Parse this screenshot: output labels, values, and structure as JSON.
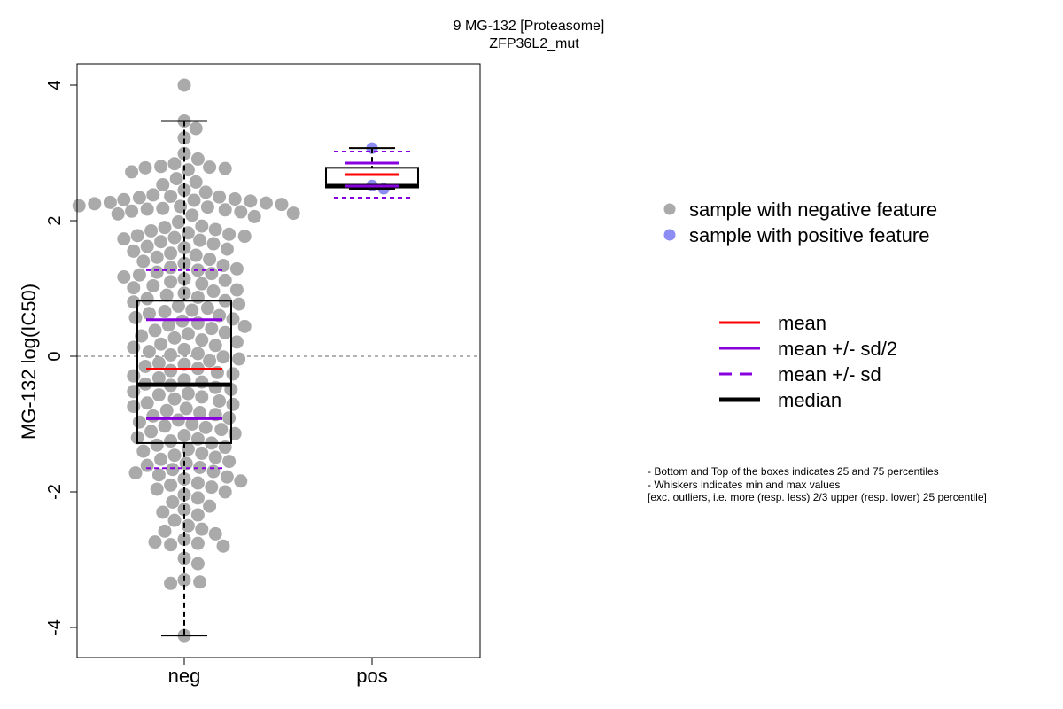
{
  "chart_data": {
    "type": "box",
    "title_lines": [
      "9 MG-132 [Proteasome]",
      "ZFP36L2_mut"
    ],
    "ylabel": "MG-132 log(IC50)",
    "categories": [
      "neg",
      "pos"
    ],
    "ylim": [
      -4.4,
      4.35
    ],
    "y_ticks": [
      -4,
      -2,
      0,
      2,
      4
    ],
    "reference_line_y": 0,
    "colors": {
      "neg_points": "#aaaaaa",
      "pos_points": "#8c8cf2",
      "mean": "#ff0000",
      "sd": "#8800dd",
      "median": "#000000"
    },
    "groups": [
      {
        "name": "neg",
        "stats": {
          "q1": -1.28,
          "q3": 0.82,
          "median": -0.42,
          "mean": -0.19,
          "mean_plus_half_sd": 0.54,
          "mean_minus_half_sd": -0.92,
          "mean_plus_sd": 1.27,
          "mean_minus_sd": -1.65,
          "whisker_low": -4.12,
          "whisker_high": 3.47
        },
        "points": [
          4.0,
          3.47,
          3.36,
          3.22,
          2.99,
          2.91,
          2.84,
          2.8,
          2.79,
          2.78,
          2.77,
          2.75,
          2.72,
          2.62,
          2.57,
          2.53,
          2.45,
          2.42,
          2.38,
          2.36,
          2.35,
          2.34,
          2.32,
          2.31,
          2.3,
          2.29,
          2.27,
          2.26,
          2.25,
          2.24,
          2.22,
          2.21,
          2.2,
          2.18,
          2.17,
          2.16,
          2.14,
          2.13,
          2.11,
          2.1,
          2.08,
          2.06,
          1.98,
          1.92,
          1.9,
          1.87,
          1.85,
          1.82,
          1.8,
          1.78,
          1.77,
          1.75,
          1.73,
          1.71,
          1.69,
          1.66,
          1.62,
          1.6,
          1.58,
          1.55,
          1.52,
          1.49,
          1.46,
          1.43,
          1.4,
          1.37,
          1.34,
          1.31,
          1.29,
          1.27,
          1.24,
          1.22,
          1.2,
          1.17,
          1.14,
          1.12,
          1.1,
          1.07,
          1.04,
          1.01,
          0.98,
          0.96,
          0.93,
          0.9,
          0.87,
          0.85,
          0.82,
          0.8,
          0.77,
          0.74,
          0.71,
          0.68,
          0.66,
          0.63,
          0.6,
          0.57,
          0.55,
          0.52,
          0.49,
          0.46,
          0.44,
          0.41,
          0.38,
          0.35,
          0.33,
          0.3,
          0.27,
          0.24,
          0.21,
          0.18,
          0.16,
          0.13,
          0.1,
          0.07,
          0.04,
          0.02,
          -0.01,
          -0.04,
          -0.07,
          -0.1,
          -0.12,
          -0.15,
          -0.18,
          -0.21,
          -0.24,
          -0.26,
          -0.29,
          -0.32,
          -0.35,
          -0.38,
          -0.41,
          -0.43,
          -0.46,
          -0.49,
          -0.52,
          -0.55,
          -0.57,
          -0.6,
          -0.63,
          -0.66,
          -0.69,
          -0.71,
          -0.74,
          -0.77,
          -0.8,
          -0.83,
          -0.86,
          -0.88,
          -0.91,
          -0.94,
          -0.97,
          -1.0,
          -1.03,
          -1.05,
          -1.08,
          -1.11,
          -1.14,
          -1.17,
          -1.2,
          -1.22,
          -1.25,
          -1.28,
          -1.31,
          -1.34,
          -1.37,
          -1.4,
          -1.43,
          -1.46,
          -1.49,
          -1.52,
          -1.55,
          -1.58,
          -1.61,
          -1.64,
          -1.67,
          -1.7,
          -1.72,
          -1.75,
          -1.78,
          -1.81,
          -1.84,
          -1.87,
          -1.9,
          -1.93,
          -1.96,
          -2.0,
          -2.04,
          -2.09,
          -2.15,
          -2.21,
          -2.26,
          -2.3,
          -2.34,
          -2.42,
          -2.5,
          -2.55,
          -2.58,
          -2.62,
          -2.7,
          -2.74,
          -2.76,
          -2.78,
          -2.8,
          -2.98,
          -3.06,
          -3.3,
          -3.33,
          -3.35,
          -4.12
        ]
      },
      {
        "name": "pos",
        "stats": {
          "q1": 2.49,
          "q3": 2.78,
          "median": 2.51,
          "mean": 2.68,
          "mean_plus_half_sd": 2.85,
          "mean_minus_half_sd": 2.51,
          "mean_plus_sd": 3.02,
          "mean_minus_sd": 2.34,
          "whisker_low": 2.47,
          "whisker_high": 3.07
        },
        "points": [
          3.07,
          2.52,
          2.47
        ]
      }
    ],
    "legend_points": [
      {
        "label": "sample with negative feature",
        "color": "#aaaaaa"
      },
      {
        "label": "sample with positive feature",
        "color": "#8c8cf2"
      }
    ],
    "legend_lines": [
      {
        "label": "mean",
        "color": "#ff0000",
        "style": "solid"
      },
      {
        "label": "mean +/- sd/2",
        "color": "#8800dd",
        "style": "solid"
      },
      {
        "label": "mean +/- sd",
        "color": "#8800dd",
        "style": "dashed"
      },
      {
        "label": "median",
        "color": "#000000",
        "style": "thick"
      }
    ],
    "notes": [
      "- Bottom and Top of the boxes indicates 25 and 75 percentiles",
      "- Whiskers indicates min and max values",
      "[exc. outliers, i.e. more (resp. less) 2/3 upper (resp. lower) 25 percentile]"
    ]
  }
}
